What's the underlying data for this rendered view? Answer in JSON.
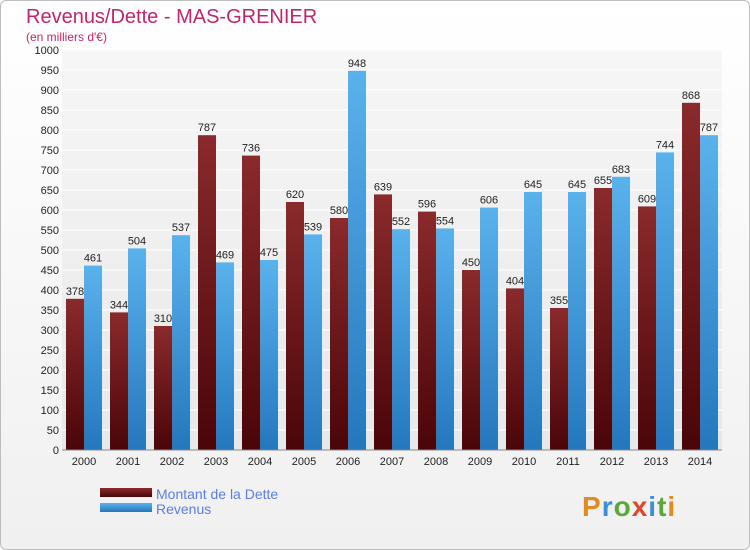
{
  "chart_data": {
    "type": "bar",
    "title": "Revenus/Dette - MAS-GRENIER",
    "subtitle": "(en milliers d'€)",
    "categories": [
      "2000",
      "2001",
      "2002",
      "2003",
      "2004",
      "2005",
      "2006",
      "2007",
      "2008",
      "2009",
      "2010",
      "2011",
      "2012",
      "2013",
      "2014"
    ],
    "series": [
      {
        "name": "Montant de la Dette",
        "color": "#7b1d1f",
        "values": [
          378,
          344,
          310,
          787,
          736,
          620,
          580,
          639,
          596,
          450,
          404,
          355,
          655,
          609,
          868
        ]
      },
      {
        "name": "Revenus",
        "color": "#3d9ee0",
        "values": [
          461,
          504,
          537,
          469,
          475,
          539,
          948,
          552,
          554,
          606,
          645,
          645,
          683,
          744,
          787
        ]
      }
    ],
    "ylim": [
      0,
      1000
    ],
    "ytick_step": 50,
    "grid": true,
    "legend": "bottom-left"
  },
  "logo_text": "Proxiti"
}
